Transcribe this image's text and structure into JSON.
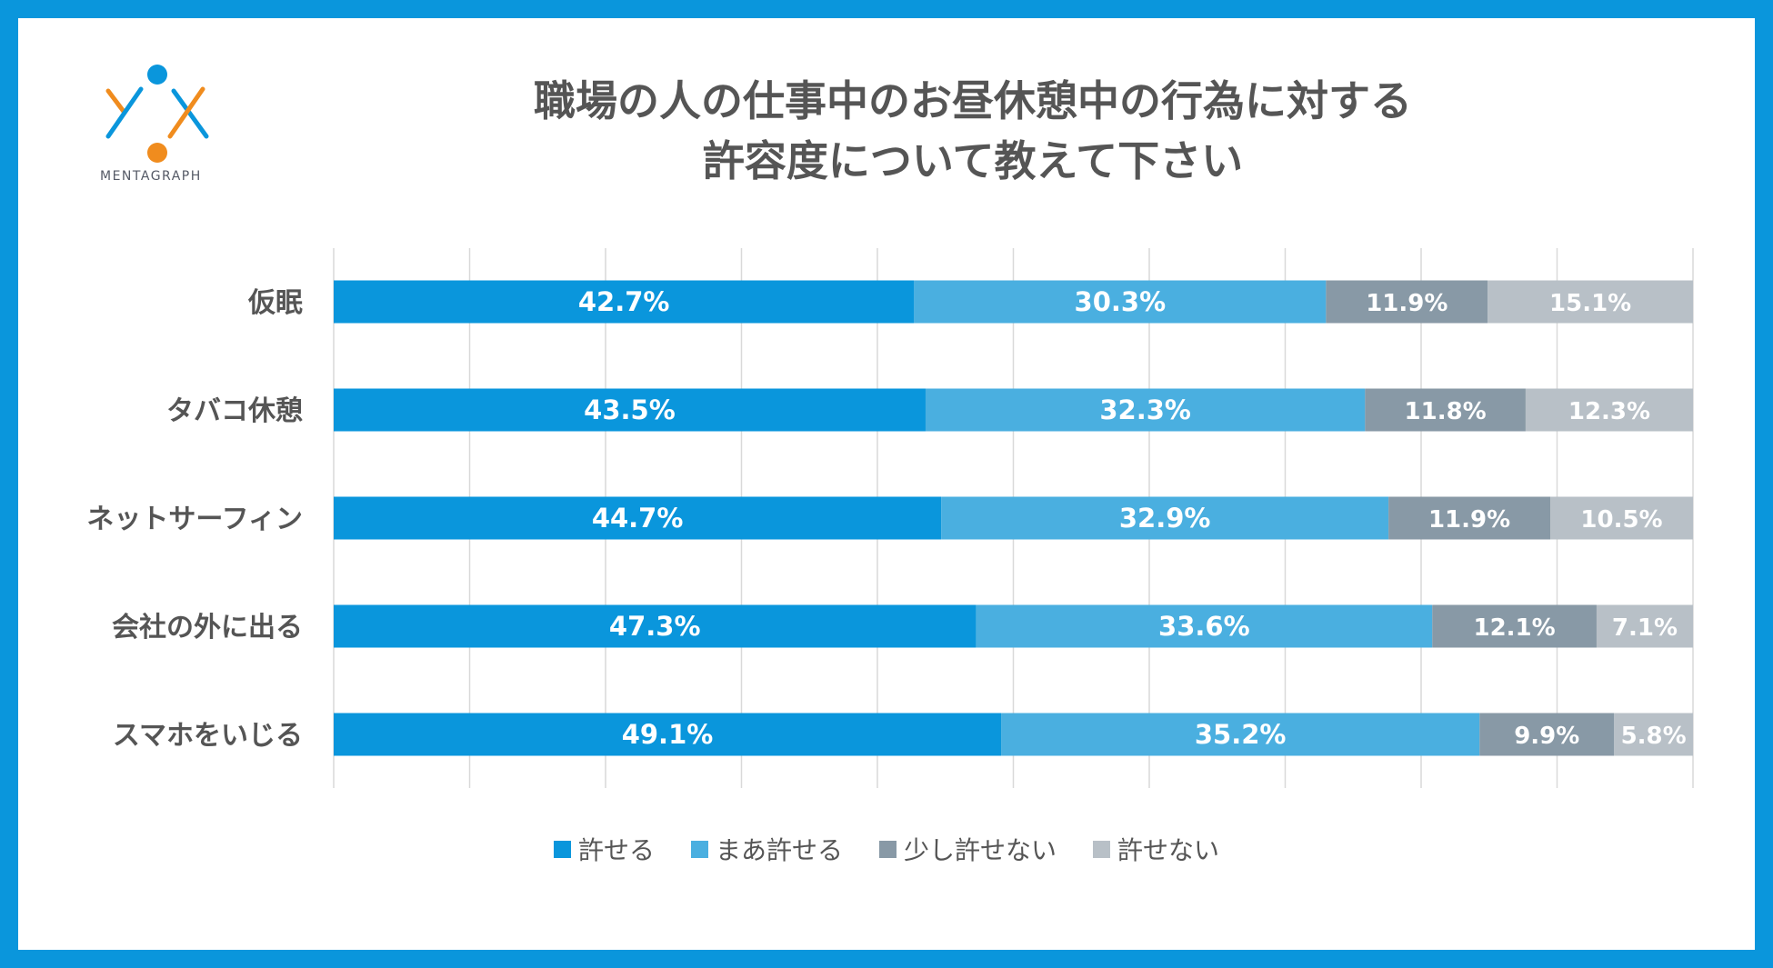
{
  "brand": {
    "name": "MENTAGRAPH"
  },
  "colors": {
    "frame": "#0a96dc",
    "grid": "#d9d9d9",
    "label": "#555555"
  },
  "chart_data": {
    "type": "bar",
    "orientation": "horizontal",
    "stacked": true,
    "title": [
      "職場の人の仕事中のお昼休憩中の行為に対する",
      "許容度について教えて下さい"
    ],
    "categories": [
      "仮眠",
      "タバコ休憩",
      "ネットサーフィン",
      "会社の外に出る",
      "スマホをいじる"
    ],
    "unit": "%",
    "xlim": [
      0,
      100
    ],
    "grid": true,
    "legend_position": "bottom",
    "series": [
      {
        "name": "許せる",
        "color": "#0a96dc",
        "values": [
          42.7,
          43.5,
          44.7,
          47.3,
          49.1
        ],
        "labels": [
          "42.7%",
          "43.5%",
          "44.7%",
          "47.3%",
          "49.1%"
        ]
      },
      {
        "name": "まあ許せる",
        "color": "#4aafe0",
        "values": [
          30.3,
          32.3,
          32.9,
          33.6,
          35.2
        ],
        "labels": [
          "30.3%",
          "32.3%",
          "32.9%",
          "33.6%",
          "35.2%"
        ]
      },
      {
        "name": "少し許せない",
        "color": "#8899a6",
        "values": [
          11.9,
          11.8,
          11.9,
          12.1,
          9.9
        ],
        "labels": [
          "11.9%",
          "11.8%",
          "11.9%",
          "12.1%",
          "9.9%"
        ]
      },
      {
        "name": "許せない",
        "color": "#b8c0c7",
        "values": [
          15.1,
          12.3,
          10.5,
          7.1,
          5.8
        ],
        "labels": [
          "15.1%",
          "12.3%",
          "10.5%",
          "7.1%",
          "5.8%"
        ]
      }
    ]
  }
}
